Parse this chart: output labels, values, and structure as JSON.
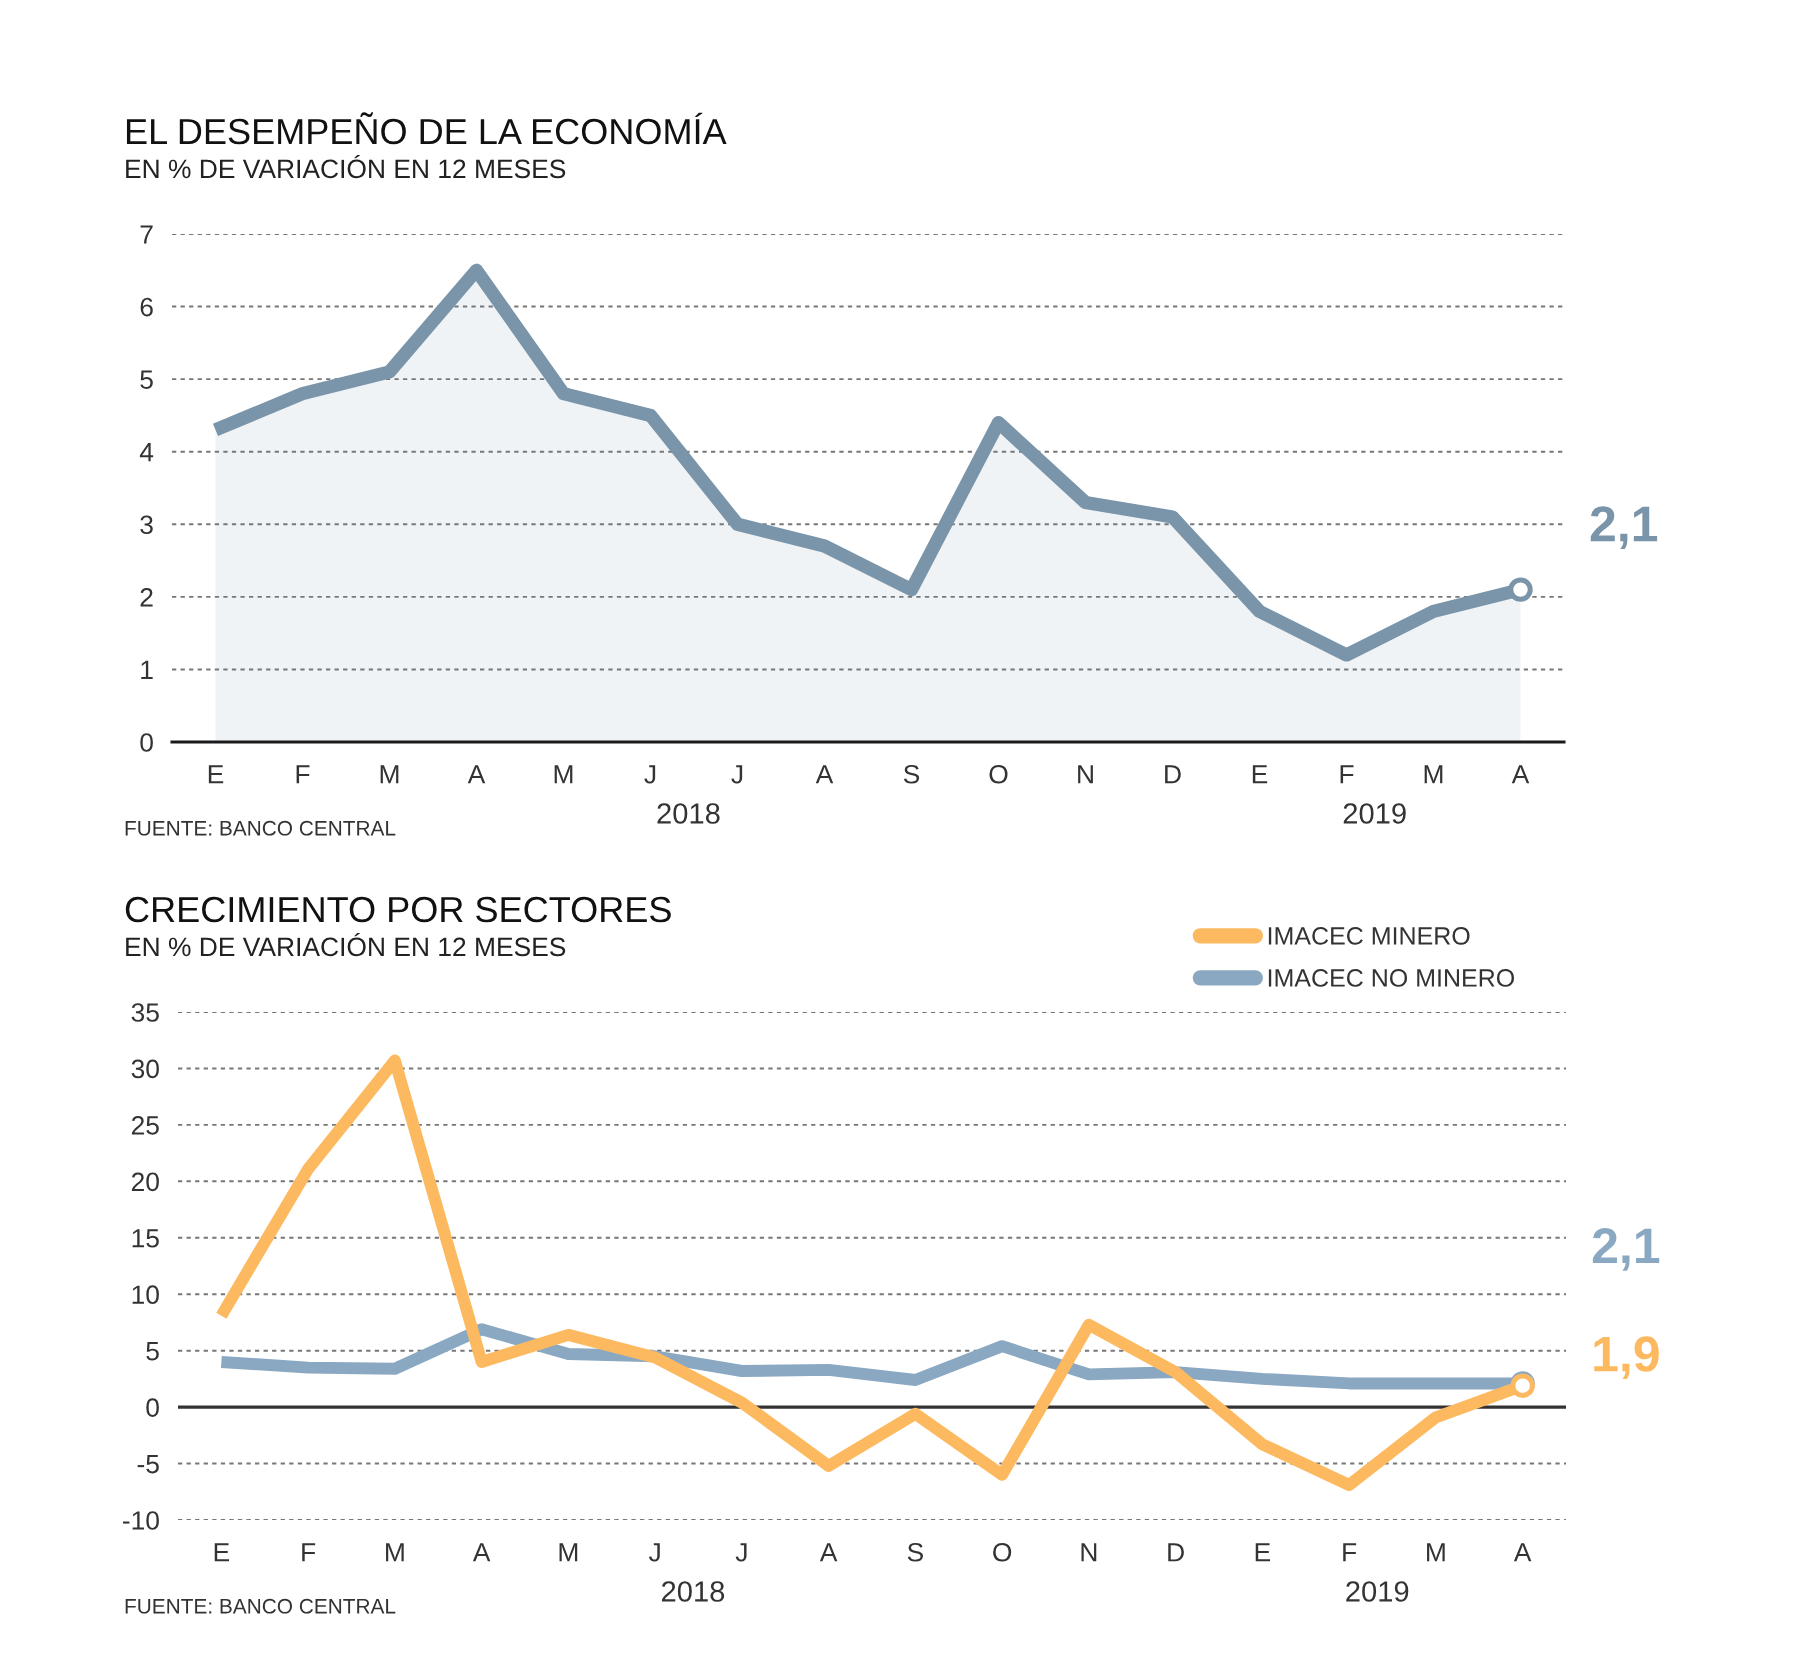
{
  "chart_data": [
    {
      "type": "area",
      "title": "EL DESEMPEÑO DE LA ECONOMÍA",
      "subtitle": "EN % DE VARIACIÓN EN 12 MESES",
      "categories": [
        "E",
        "F",
        "M",
        "A",
        "M",
        "J",
        "J",
        "A",
        "S",
        "O",
        "N",
        "D",
        "E",
        "F",
        "M",
        "A"
      ],
      "series": [
        {
          "color": "#7a94a9",
          "values": [
            4.3,
            4.8,
            5.1,
            6.5,
            4.8,
            4.5,
            3.0,
            2.7,
            2.1,
            4.4,
            3.3,
            3.1,
            1.8,
            1.2,
            1.8,
            2.1
          ],
          "value_labels": [
            null,
            null,
            null,
            null,
            null,
            null,
            null,
            null,
            null,
            null,
            null,
            null,
            null,
            null,
            null,
            "2,1"
          ]
        }
      ],
      "ylim": [
        0,
        7
      ],
      "yticks": [
        0,
        1,
        2,
        3,
        4,
        5,
        6,
        7
      ],
      "grid": "y",
      "annotations": [
        "2018",
        "2019",
        "FUENTE: BANCO CENTRAL"
      ]
    },
    {
      "type": "line",
      "title": "CRECIMIENTO POR SECTORES",
      "subtitle": "EN % DE VARIACIÓN EN 12 MESES",
      "categories": [
        "E",
        "F",
        "M",
        "A",
        "M",
        "J",
        "J",
        "A",
        "S",
        "O",
        "N",
        "D",
        "E",
        "F",
        "M",
        "A"
      ],
      "series": [
        {
          "name": "IMACEC MINERO",
          "color": "#fdb95f",
          "values": [
            8.1,
            21.1,
            30.7,
            4.0,
            6.4,
            4.4,
            0.4,
            -5.2,
            -0.6,
            -6.0,
            7.3,
            3.1,
            -3.3,
            -6.9,
            -0.9,
            1.9
          ],
          "value_labels": [
            null,
            null,
            null,
            null,
            null,
            null,
            null,
            null,
            null,
            null,
            null,
            null,
            null,
            null,
            null,
            "1,9"
          ]
        },
        {
          "name": "IMACEC NO MINERO",
          "color": "#8aa8c1",
          "values": [
            4.0,
            3.5,
            3.4,
            6.9,
            4.7,
            4.5,
            3.2,
            3.3,
            2.4,
            5.4,
            2.9,
            3.1,
            2.5,
            2.1,
            2.1,
            2.1
          ],
          "value_labels": [
            null,
            null,
            null,
            null,
            null,
            null,
            null,
            null,
            null,
            null,
            null,
            null,
            null,
            null,
            null,
            "2,1"
          ]
        }
      ],
      "ylim": [
        -10,
        35
      ],
      "yticks": [
        -10,
        -5,
        0,
        5,
        10,
        15,
        20,
        25,
        30,
        35
      ],
      "grid": "y",
      "legend": "top right",
      "ref_lines": [
        {
          "axis": "y",
          "value": 0,
          "color": "#333333"
        }
      ],
      "annotations": [
        "2018",
        "2019",
        "FUENTE: BANCO CENTRAL"
      ]
    }
  ]
}
